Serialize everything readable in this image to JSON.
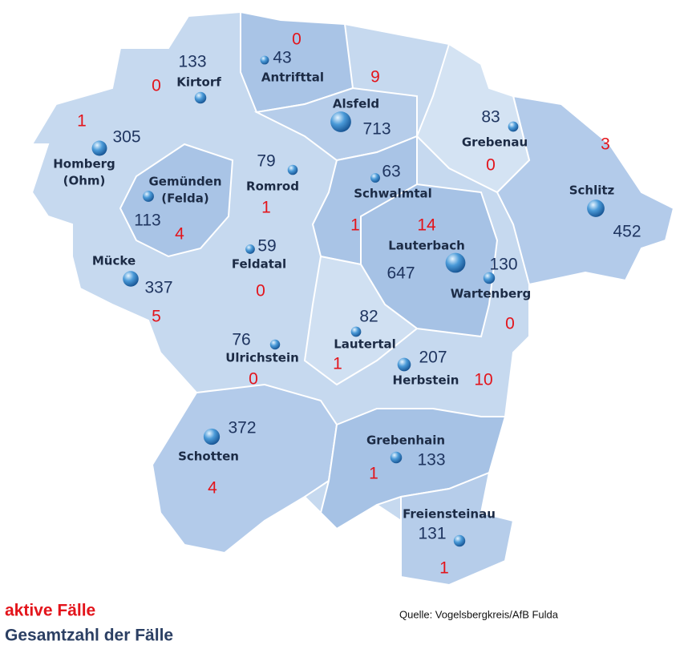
{
  "map": {
    "regions": [
      {
        "name_lines": [
          "Antrifttal"
        ],
        "total": 43,
        "active": 0
      },
      {
        "name_lines": [
          "Kirtorf"
        ],
        "total": 133,
        "active": 0
      },
      {
        "name_lines": [
          "Alsfeld"
        ],
        "total": 713,
        "active": 9
      },
      {
        "name_lines": [
          "Homberg",
          "(Ohm)"
        ],
        "total": 305,
        "active": 1
      },
      {
        "name_lines": [
          "Gemünden",
          "(Felda)"
        ],
        "total": 113,
        "active": 4
      },
      {
        "name_lines": [
          "Romrod"
        ],
        "total": 79,
        "active": 1
      },
      {
        "name_lines": [
          "Schwalmtal"
        ],
        "total": 63,
        "active": 1
      },
      {
        "name_lines": [
          "Grebenau"
        ],
        "total": 83,
        "active": 0
      },
      {
        "name_lines": [
          "Schlitz"
        ],
        "total": 452,
        "active": 3
      },
      {
        "name_lines": [
          "Mücke"
        ],
        "total": 337,
        "active": 5
      },
      {
        "name_lines": [
          "Feldatal"
        ],
        "total": 59,
        "active": 0
      },
      {
        "name_lines": [
          "Lauterbach"
        ],
        "total": 647,
        "active": 14
      },
      {
        "name_lines": [
          "Wartenberg"
        ],
        "total": 130,
        "active": 0
      },
      {
        "name_lines": [
          "Lautertal"
        ],
        "total": 82,
        "active": 1
      },
      {
        "name_lines": [
          "Ulrichstein"
        ],
        "total": 76,
        "active": 0
      },
      {
        "name_lines": [
          "Herbstein"
        ],
        "total": 207,
        "active": 10
      },
      {
        "name_lines": [
          "Schotten"
        ],
        "total": 372,
        "active": 4
      },
      {
        "name_lines": [
          "Grebenhain"
        ],
        "total": 133,
        "active": 1
      },
      {
        "name_lines": [
          "Freiensteinau"
        ],
        "total": 131,
        "active": 1
      }
    ]
  },
  "legend": {
    "active": "aktive Fälle",
    "total": "Gesamtzahl der Fälle"
  },
  "source": "Quelle: Vogelsbergkreis/AfB Fulda"
}
